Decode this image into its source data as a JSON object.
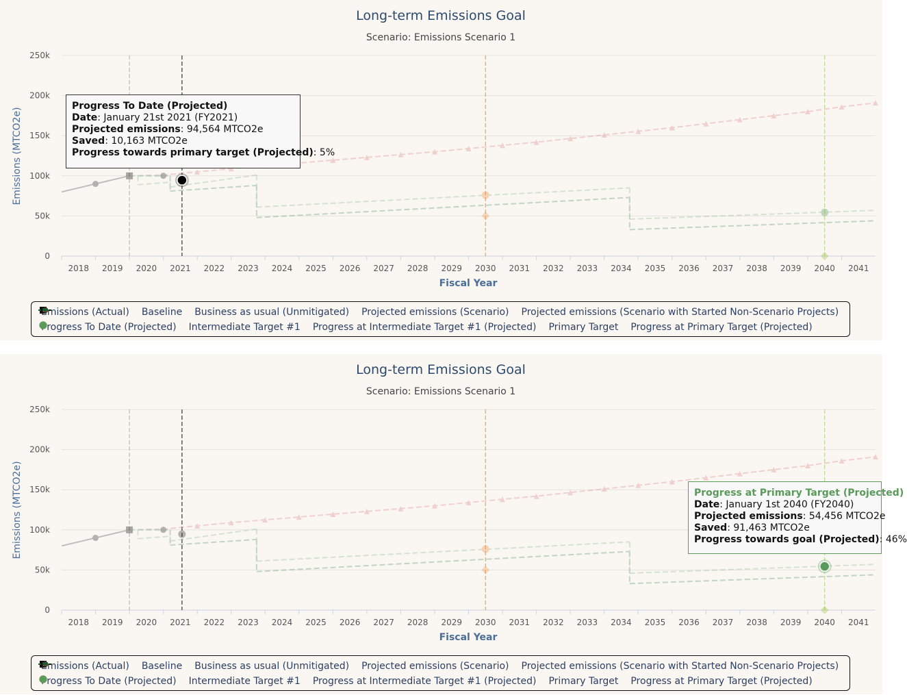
{
  "chart_data": [
    {
      "type": "line",
      "title": "Long-term Emissions Goal",
      "subtitle": "Scenario: Emissions Scenario 1",
      "xlabel": "Fiscal Year",
      "ylabel": "Emissions (MTCO2e)",
      "x_ticks": [
        "2018",
        "2019",
        "2020",
        "2021",
        "2022",
        "2023",
        "2024",
        "2025",
        "2026",
        "2027",
        "2028",
        "2029",
        "2030",
        "2031",
        "2032",
        "2033",
        "2034",
        "2035",
        "2036",
        "2037",
        "2038",
        "2039",
        "2040",
        "2041"
      ],
      "y_ticks": [
        "0",
        "50k",
        "100k",
        "150k",
        "200k",
        "250k"
      ],
      "xlim": [
        2017.5,
        2041.5
      ],
      "ylim": [
        0,
        250000
      ],
      "grid": true,
      "legend": [
        "Emissions (Actual)",
        "Baseline",
        "Business as usual (Unmitigated)",
        "Projected emissions (Scenario)",
        "Projected emissions (Scenario with Started Non-Scenario Projects)",
        "Progress To Date (Projected)",
        "Intermediate Target #1",
        "Progress at Intermediate Target #1 (Projected)",
        "Primary Target",
        "Progress at Primary Target (Projected)"
      ],
      "series": [
        {
          "name": "Emissions (Actual)",
          "color": "#000000",
          "points": [
            [
              2017.5,
              80000
            ],
            [
              2018.5,
              90000
            ],
            [
              2019.5,
              100000
            ]
          ]
        },
        {
          "name": "Baseline",
          "color": "#111111",
          "points": [
            [
              2019.5,
              100000
            ]
          ]
        },
        {
          "name": "Business as usual (Unmitigated)",
          "color": "#e08a8a",
          "points": [
            [
              2019.5,
              100000
            ],
            [
              2020.5,
              101000
            ],
            [
              2021.5,
              105000
            ],
            [
              2022.5,
              109000
            ],
            [
              2023.5,
              112500
            ],
            [
              2024.5,
              116000
            ],
            [
              2025.5,
              119500
            ],
            [
              2026.5,
              123000
            ],
            [
              2027.5,
              126500
            ],
            [
              2028.5,
              130000
            ],
            [
              2029.5,
              134000
            ],
            [
              2030.5,
              138000
            ],
            [
              2031.5,
              142000
            ],
            [
              2032.5,
              146500
            ],
            [
              2033.5,
              151000
            ],
            [
              2034.5,
              155500
            ],
            [
              2035.5,
              160000
            ],
            [
              2036.5,
              165000
            ],
            [
              2037.5,
              170000
            ],
            [
              2038.5,
              175000
            ],
            [
              2039.5,
              180000
            ],
            [
              2040.5,
              186000
            ],
            [
              2041.5,
              191000
            ]
          ]
        },
        {
          "name": "Projected emissions (Scenario)",
          "color": "#8fc08f",
          "segments": [
            [
              [
                2019.5,
                100000
              ],
              [
                2019.75,
                100000
              ]
            ],
            [
              [
                2019.75,
                89000
              ],
              [
                2020.7,
                92000
              ]
            ],
            [
              [
                2020.7,
                86000
              ],
              [
                2023.25,
                101000
              ]
            ],
            [
              [
                2023.25,
                61000
              ],
              [
                2034.25,
                85000
              ]
            ],
            [
              [
                2034.25,
                46000
              ],
              [
                2041.5,
                57000
              ]
            ]
          ]
        },
        {
          "name": "Projected emissions (Scenario with Started Non-Scenario Projects)",
          "color": "#5a9a6a",
          "segments": [
            [
              [
                2019.75,
                100000
              ],
              [
                2020.7,
                100000
              ]
            ],
            [
              [
                2020.7,
                81000
              ],
              [
                2023.25,
                88000
              ]
            ],
            [
              [
                2023.25,
                48000
              ],
              [
                2034.25,
                73000
              ]
            ],
            [
              [
                2034.25,
                33000
              ],
              [
                2041.5,
                44000
              ]
            ]
          ]
        },
        {
          "name": "Progress To Date (Projected)",
          "color": "#000000",
          "points": [
            [
              2021.05,
              94564
            ]
          ]
        },
        {
          "name": "Intermediate Target #1",
          "color": "#f0a050",
          "points": [
            [
              2030,
              50000
            ]
          ]
        },
        {
          "name": "Progress at Intermediate Target #1 (Projected)",
          "color": "#f09040",
          "points": [
            [
              2030,
              76000
            ]
          ]
        },
        {
          "name": "Primary Target",
          "color": "#9ac040",
          "points": [
            [
              2040,
              0
            ]
          ]
        },
        {
          "name": "Progress at Primary Target (Projected)",
          "color": "#5a9a5a",
          "points": [
            [
              2040,
              54456
            ]
          ]
        }
      ],
      "plot_lines": [
        {
          "x": 2019.5,
          "color": "#bbbbbb"
        },
        {
          "x": 2021.05,
          "color": "#333333"
        },
        {
          "x": 2030,
          "color": "#f0a050"
        },
        {
          "x": 2040,
          "color": "#b8d890"
        }
      ],
      "tooltip": {
        "title": "Progress To Date (Projected)",
        "date_label": "Date",
        "date_value": ": January 21st 2021 (FY2021)",
        "proj_label": "Projected emissions",
        "proj_value": ": 94,564 MTCO2e",
        "saved_label": "Saved",
        "saved_value": ": 10,163 MTCO2e",
        "progress_label": "Progress towards primary target (Projected)",
        "progress_value": ": 5%"
      }
    },
    {
      "type": "line",
      "title": "Long-term Emissions Goal",
      "subtitle": "Scenario: Emissions Scenario 1",
      "xlabel": "Fiscal Year",
      "ylabel": "Emissions (MTCO2e)",
      "tooltip": {
        "title": "Progress at Primary Target (Projected)",
        "date_label": "Date",
        "date_value": ": January 1st 2040 (FY2040)",
        "proj_label": "Projected emissions",
        "proj_value": ": 54,456 MTCO2e",
        "saved_label": "Saved",
        "saved_value": ": 91,463 MTCO2e",
        "progress_label": "Progress towards goal (Projected)",
        "progress_value": ": 46%"
      }
    }
  ],
  "colors": {
    "text": "#2b3f63",
    "title": "#2b4a6e",
    "axis_title": "#4a6e9a",
    "grid": "#e6e1dc"
  }
}
